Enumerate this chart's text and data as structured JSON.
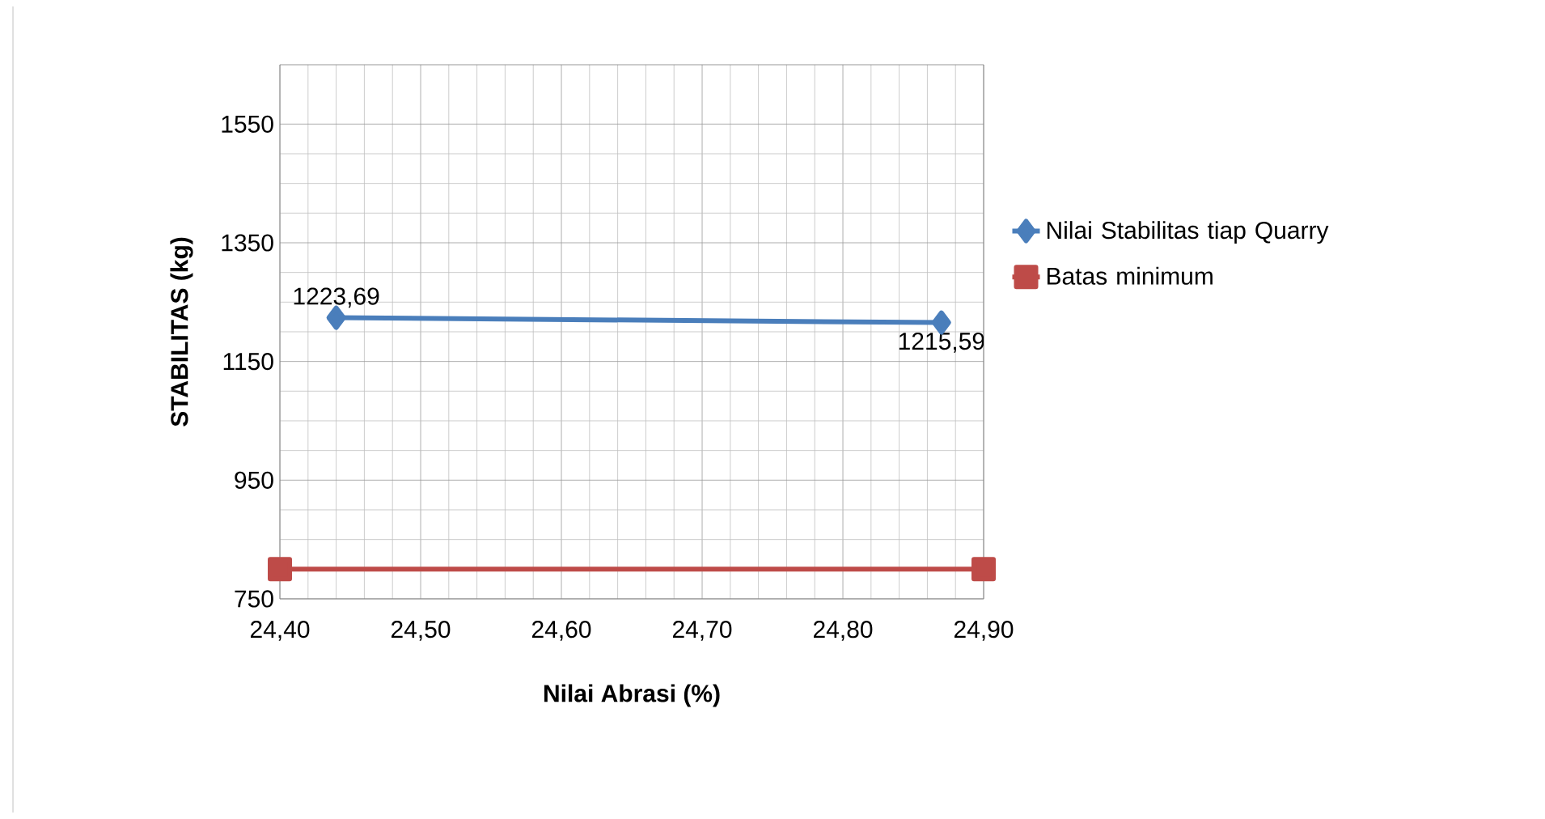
{
  "chart_data": {
    "type": "line",
    "xlabel": "Nilai Abrasi (%)",
    "ylabel": "STABILITAS (kg)",
    "xlim": [
      24.4,
      24.9
    ],
    "xticks": [
      {
        "value": 24.4,
        "label": "24,40"
      },
      {
        "value": 24.5,
        "label": "24,50"
      },
      {
        "value": 24.6,
        "label": "24,60"
      },
      {
        "value": 24.7,
        "label": "24,70"
      },
      {
        "value": 24.8,
        "label": "24,80"
      },
      {
        "value": 24.9,
        "label": "24,90"
      }
    ],
    "ylim": [
      750,
      1650
    ],
    "yticks": [
      750,
      950,
      1150,
      1350,
      1550
    ],
    "grid": true,
    "legend": "right",
    "series": [
      {
        "name": "Nilai Stabilitas tiap Quarry",
        "color": "#4a7ebb",
        "x": [
          24.44,
          24.87
        ],
        "values": [
          1223.69,
          1215.59
        ],
        "value_labels": [
          "1223,69",
          "1215,59"
        ],
        "marker": "diamond"
      },
      {
        "name": "Batas minimum",
        "color": "#be4b48",
        "x": [
          24.4,
          24.9
        ],
        "values": [
          800,
          800
        ],
        "marker": "square"
      }
    ]
  }
}
